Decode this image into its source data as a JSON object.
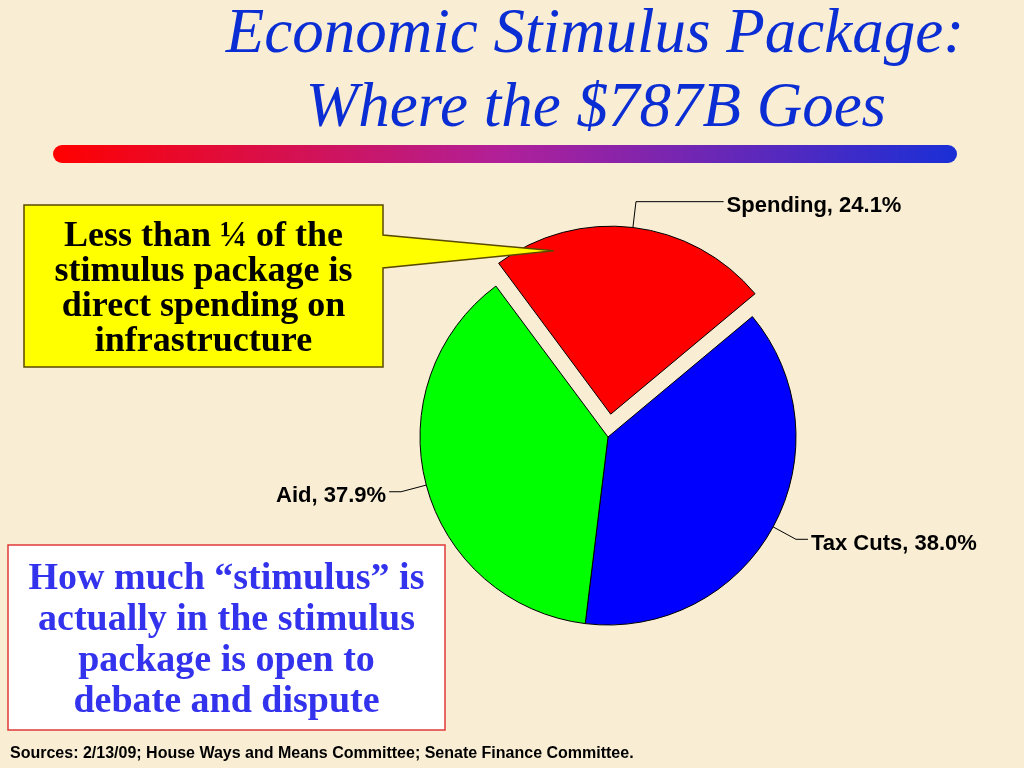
{
  "chart_data": {
    "type": "pie",
    "title": "Economic Stimulus Package:",
    "subtitle": "Where the $787B Goes",
    "categories": [
      "Spending",
      "Tax Cuts",
      "Aid"
    ],
    "values": [
      24.1,
      38.0,
      37.9
    ],
    "colors": [
      "#ff0000",
      "#0000ff",
      "#00ff00"
    ],
    "value_labels": [
      "24.1%",
      "38.0%",
      "37.9%"
    ],
    "annotations": [
      "Less than ¼ of the stimulus package is direct spending on infrastructure",
      "How much “stimulus” is actually in the stimulus package is open to debate and dispute",
      "Sources: 2/13/09; House Ways and Means Committee; Senate Finance Committee."
    ]
  }
}
